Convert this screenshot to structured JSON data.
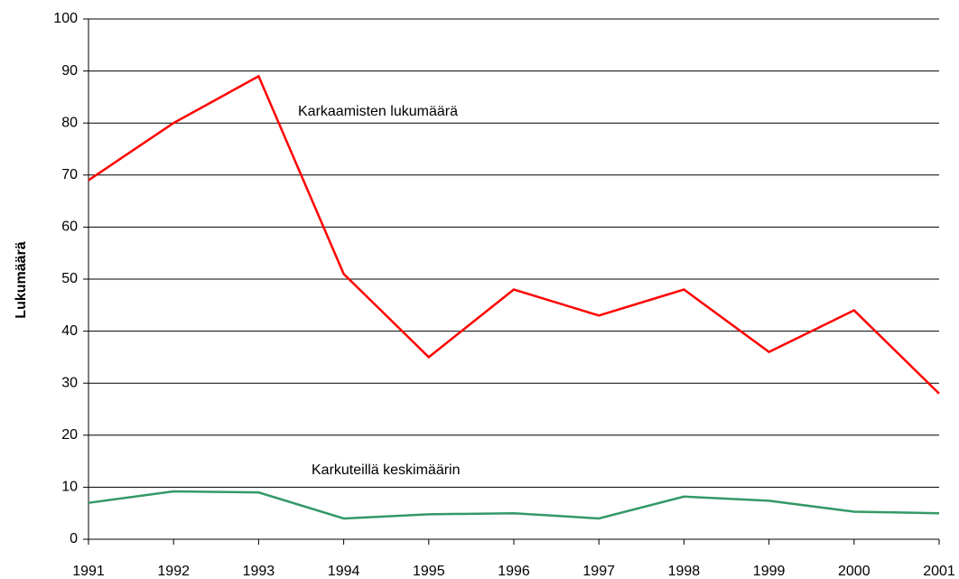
{
  "chart_data": {
    "type": "line",
    "y_label": "Lukumäärä",
    "categories": [
      "1991",
      "1992",
      "1993",
      "1994",
      "1995",
      "1996",
      "1997",
      "1998",
      "1999",
      "2000",
      "2001"
    ],
    "series": [
      {
        "name": "Karkaamisten lukumäärä",
        "color": "#ff0000",
        "values": [
          69,
          80,
          89,
          51,
          35,
          48,
          43,
          48,
          36,
          44,
          28
        ]
      },
      {
        "name": "Karkuteillä keskimäärin",
        "color": "#339966",
        "values": [
          7,
          9.2,
          9,
          4,
          4.8,
          5,
          4,
          8.2,
          7.4,
          5.3,
          5
        ]
      }
    ],
    "ylim": [
      0,
      100
    ],
    "yticks": [
      0,
      10,
      20,
      30,
      40,
      50,
      60,
      70,
      80,
      90,
      100
    ],
    "grid": true
  }
}
